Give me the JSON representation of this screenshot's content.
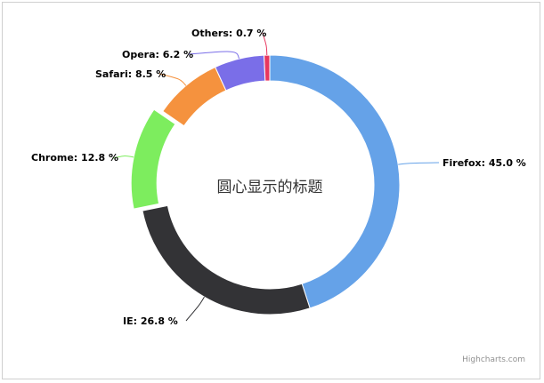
{
  "chart_data": {
    "type": "pie",
    "variant": "donut",
    "title": "圆心显示的标题",
    "series": [
      {
        "name": "Firefox",
        "value": 45.0,
        "label": "Firefox: 45.0 %",
        "color": "#65a2e8",
        "sliced": false
      },
      {
        "name": "IE",
        "value": 26.8,
        "label": "IE: 26.8 %",
        "color": "#333336",
        "sliced": false
      },
      {
        "name": "Chrome",
        "value": 12.8,
        "label": "Chrome: 12.8 %",
        "color": "#7ded5e",
        "sliced": true
      },
      {
        "name": "Safari",
        "value": 8.5,
        "label": "Safari: 8.5 %",
        "color": "#f5923e",
        "sliced": false
      },
      {
        "name": "Opera",
        "value": 6.2,
        "label": "Opera: 6.2 %",
        "color": "#7a6ee8",
        "sliced": false
      },
      {
        "name": "Others",
        "value": 0.7,
        "label": "Others: 0.7 %",
        "color": "#e8375f",
        "sliced": false
      }
    ]
  },
  "credits": "Highcharts.com"
}
